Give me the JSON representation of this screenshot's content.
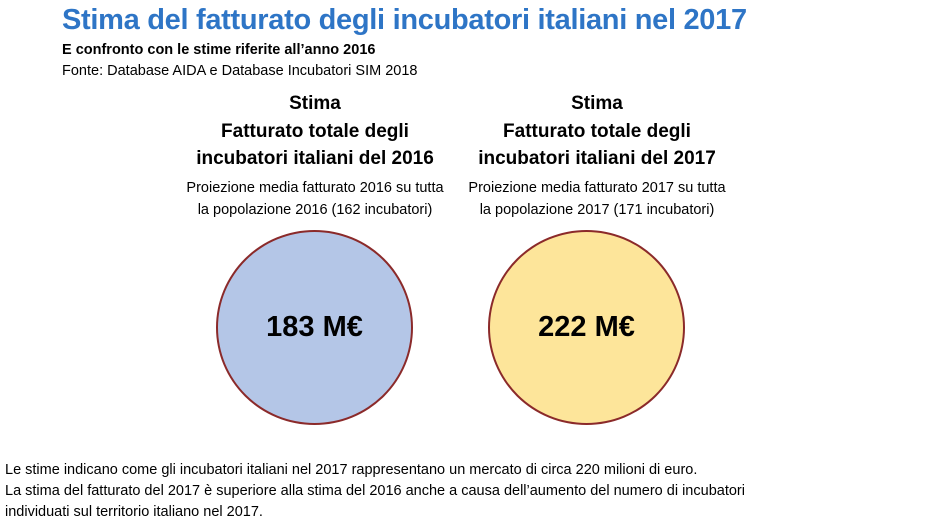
{
  "header": {
    "title": "Stima del fatturato degli incubatori italiani nel 2017",
    "subtitle": "E confronto con le stime riferite all’anno 2016",
    "source": "Fonte: Database AIDA e Database Incubatori SIM 2018"
  },
  "estimates": [
    {
      "heading_line1": "Stima",
      "heading_line2": "Fatturato totale degli",
      "heading_line3": "incubatori italiani del 2016",
      "note_line1": "Proiezione media fatturato 2016 su tutta",
      "note_line2": "la popolazione 2016 (162 incubatori)",
      "value": "183 M€",
      "color": "#b4c6e7"
    },
    {
      "heading_line1": "Stima",
      "heading_line2": "Fatturato totale degli",
      "heading_line3": "incubatori italiani del 2017",
      "note_line1": "Proiezione media fatturato 2017 su tutta",
      "note_line2": "la popolazione 2017 (171 incubatori)",
      "value": "222 M€",
      "color": "#fde59a"
    }
  ],
  "footer": {
    "line1": "Le stime indicano come gli incubatori italiani nel 2017 rappresentano un mercato di circa 220 milioni di euro.",
    "line2": "La stima del fatturato del 2017 è superiore alla stima del 2016 anche a causa dell’aumento del numero di incubatori",
    "line3": "individuati sul territorio italiano nel 2017."
  },
  "colors": {
    "title": "#2e75c6",
    "circle_border": "#8b2a2a"
  }
}
